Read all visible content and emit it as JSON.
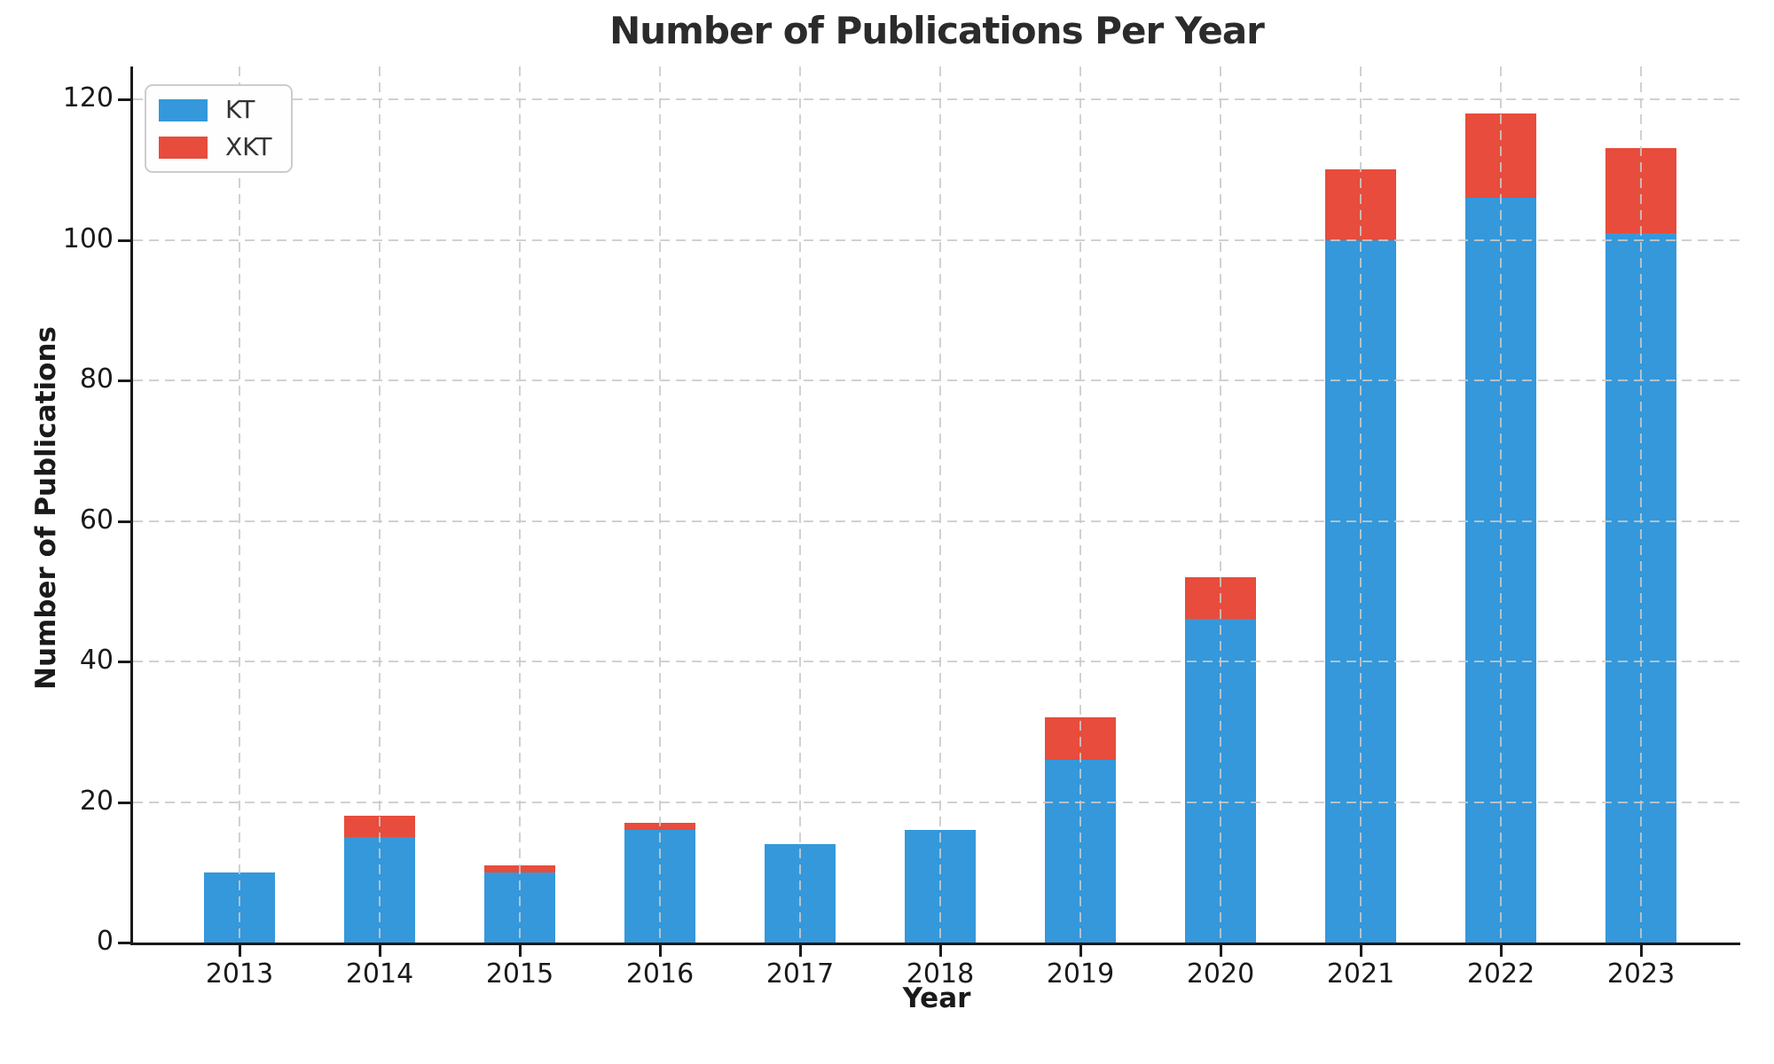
{
  "chart_data": {
    "type": "bar",
    "stacked": true,
    "title": "Number of Publications Per Year",
    "xlabel": "Year",
    "ylabel": "Number of Publications",
    "categories": [
      "2013",
      "2014",
      "2015",
      "2016",
      "2017",
      "2018",
      "2019",
      "2020",
      "2021",
      "2022",
      "2023"
    ],
    "series": [
      {
        "name": "KT",
        "color": "#3498db",
        "values": [
          10,
          15,
          10,
          16,
          14,
          16,
          26,
          46,
          100,
          106,
          101
        ]
      },
      {
        "name": "XKT",
        "color": "#e74c3c",
        "values": [
          0,
          3,
          1,
          1,
          0,
          0,
          6,
          6,
          10,
          12,
          12
        ]
      }
    ],
    "totals": [
      10,
      18,
      11,
      17,
      14,
      16,
      32,
      52,
      110,
      118,
      113
    ],
    "yticks": [
      0,
      20,
      40,
      60,
      80,
      100,
      120
    ],
    "ylim": [
      0,
      124.7
    ],
    "grid": "dashed",
    "legend_position": "upper-left"
  },
  "colors": {
    "kt": "#3498db",
    "xkt": "#e74c3c",
    "grid": "#c9c9c9",
    "spine": "#1a1a1a",
    "text": "#2b2b2b",
    "background": "#ffffff"
  }
}
